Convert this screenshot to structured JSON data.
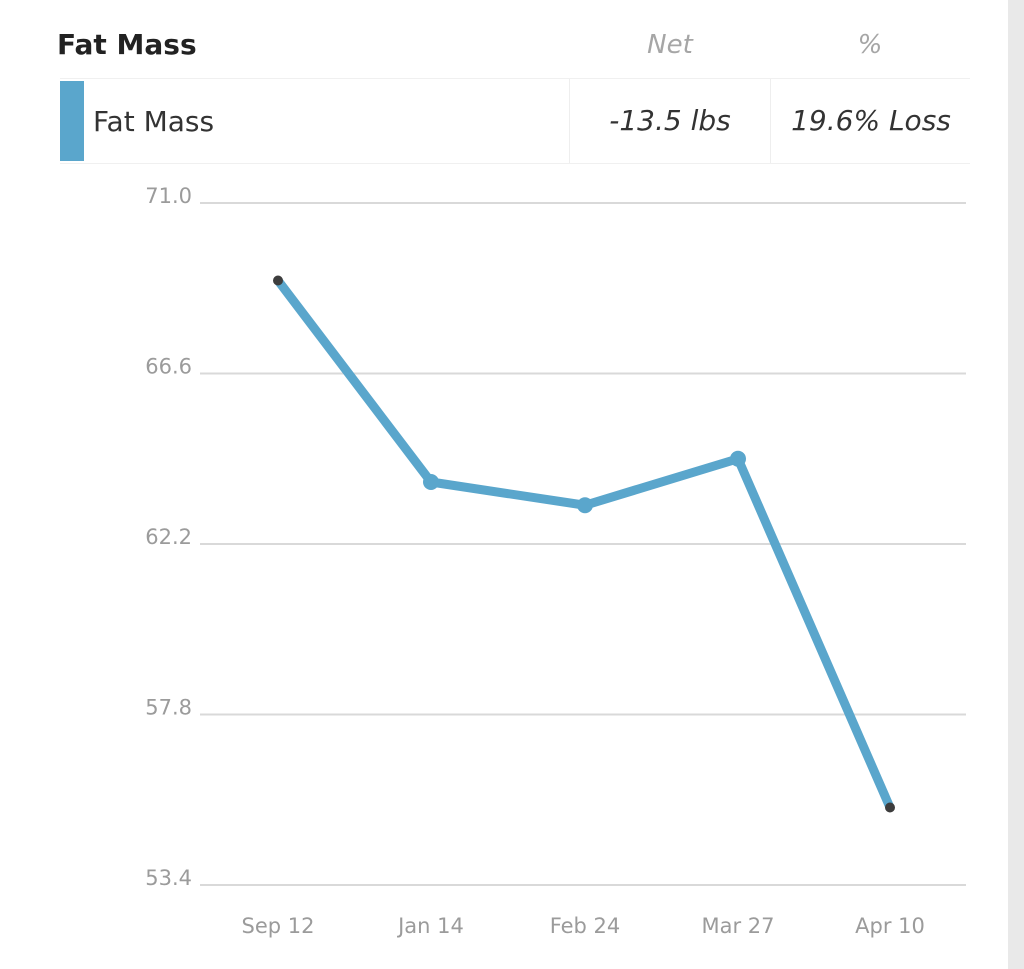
{
  "header": {
    "title": "Fat Mass",
    "col_net": "Net",
    "col_pct": "%"
  },
  "legend": {
    "label": "Fat Mass",
    "net": "-13.5 lbs",
    "pct": "19.6% Loss",
    "swatch_icon": "color-swatch"
  },
  "colors": {
    "series": "#5aa6cc",
    "marker": "#3d3d3d",
    "grid": "#d9d9d9",
    "tick": "#9b9b9b"
  },
  "chart_data": {
    "type": "line",
    "categories": [
      "Sep 12",
      "Jan 14",
      "Feb 24",
      "Mar 27",
      "Apr 10"
    ],
    "series": [
      {
        "name": "Fat Mass",
        "values": [
          69.0,
          63.8,
          63.2,
          64.4,
          55.4
        ]
      }
    ],
    "y_ticks": [
      "71.0",
      "66.6",
      "62.2",
      "57.8",
      "53.4"
    ],
    "ylim": [
      53.4,
      71.0
    ],
    "grid": true,
    "xlabel": "",
    "ylabel": ""
  }
}
